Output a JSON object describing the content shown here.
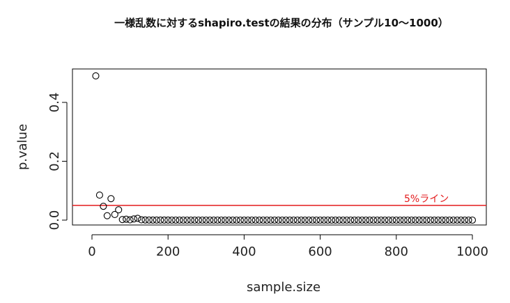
{
  "chart_data": {
    "type": "scatter",
    "title": "一様乱数に対するshapiro.testの結果の分布（サンプル10〜1000）",
    "xlabel": "sample.size",
    "ylabel": "p.value",
    "xlim": [
      0,
      1000
    ],
    "ylim": [
      0,
      0.5
    ],
    "xticks": [
      "0",
      "200",
      "400",
      "600",
      "800",
      "1000"
    ],
    "yticks": [
      "0.0",
      "0.2",
      "0.4"
    ],
    "grid": false,
    "reference_line": {
      "y": 0.05,
      "label": "5%ライン",
      "color": "#e31a1c"
    },
    "point_color": "#000000",
    "series": [
      {
        "x": [
          10,
          20,
          30,
          40,
          50,
          60,
          70,
          80,
          90,
          100,
          110,
          120,
          130,
          140,
          150,
          160,
          170,
          180,
          190,
          200,
          210,
          220,
          230,
          240,
          250,
          260,
          270,
          280,
          290,
          300,
          310,
          320,
          330,
          340,
          350,
          360,
          370,
          380,
          390,
          400,
          410,
          420,
          430,
          440,
          450,
          460,
          470,
          480,
          490,
          500,
          510,
          520,
          530,
          540,
          550,
          560,
          570,
          580,
          590,
          600,
          610,
          620,
          630,
          640,
          650,
          660,
          670,
          680,
          690,
          700,
          710,
          720,
          730,
          740,
          750,
          760,
          770,
          780,
          790,
          800,
          810,
          820,
          830,
          840,
          850,
          860,
          870,
          880,
          890,
          900,
          910,
          920,
          930,
          940,
          950,
          960,
          970,
          980,
          990,
          1000
        ],
        "y": [
          0.49,
          0.085,
          0.047,
          0.015,
          0.073,
          0.019,
          0.035,
          0.002,
          0.003,
          0.001,
          0.004,
          0.006,
          0.001,
          0.0005,
          0.0003,
          0.0002,
          0.0001,
          0.0001,
          0.0001,
          0.0001,
          0,
          0,
          0,
          0,
          0,
          0,
          0,
          0,
          0,
          0,
          0,
          0,
          0,
          0,
          0,
          0,
          0,
          0,
          0,
          0,
          0,
          0,
          0,
          0,
          0,
          0,
          0,
          0,
          0,
          0,
          0,
          0,
          0,
          0,
          0,
          0,
          0,
          0,
          0,
          0,
          0,
          0,
          0,
          0,
          0,
          0,
          0,
          0,
          0,
          0,
          0,
          0,
          0,
          0,
          0,
          0,
          0,
          0,
          0,
          0,
          0,
          0,
          0,
          0,
          0,
          0,
          0,
          0,
          0,
          0,
          0,
          0,
          0,
          0,
          0,
          0,
          0,
          0,
          0,
          0
        ]
      }
    ]
  }
}
